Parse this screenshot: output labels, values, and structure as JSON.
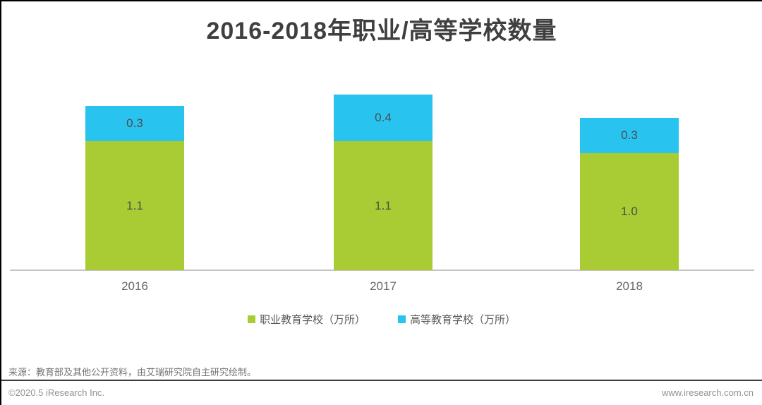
{
  "header": {
    "title": "2016-2018年职业/高等学校数量"
  },
  "chart_data": {
    "type": "bar",
    "stacked": true,
    "title": "2016-2018年职业/高等学校数量",
    "unit": "万所",
    "categories": [
      "2016",
      "2017",
      "2018"
    ],
    "series": [
      {
        "name": "职业教育学校（万所）",
        "color": "#a9cb33",
        "values": [
          1.1,
          1.1,
          1.0
        ],
        "labels": [
          "1.1",
          "1.1",
          "1.0"
        ]
      },
      {
        "name": "高等教育学校（万所）",
        "color": "#29c3ef",
        "values": [
          0.3,
          0.4,
          0.3
        ],
        "labels": [
          "0.3",
          "0.4",
          "0.3"
        ]
      }
    ],
    "totals": [
      1.4,
      1.5,
      1.3
    ],
    "value_labels": "inside-center",
    "legend_position": "bottom",
    "grid": false,
    "baseline_axis": "x",
    "ylim": [
      0,
      1.6
    ]
  },
  "footer": {
    "source_note": "来源：教育部及其他公开资料，由艾瑞研究院自主研究绘制。",
    "copyright": "©2020.5 iResearch Inc.",
    "website": "www.iresearch.com.cn"
  }
}
